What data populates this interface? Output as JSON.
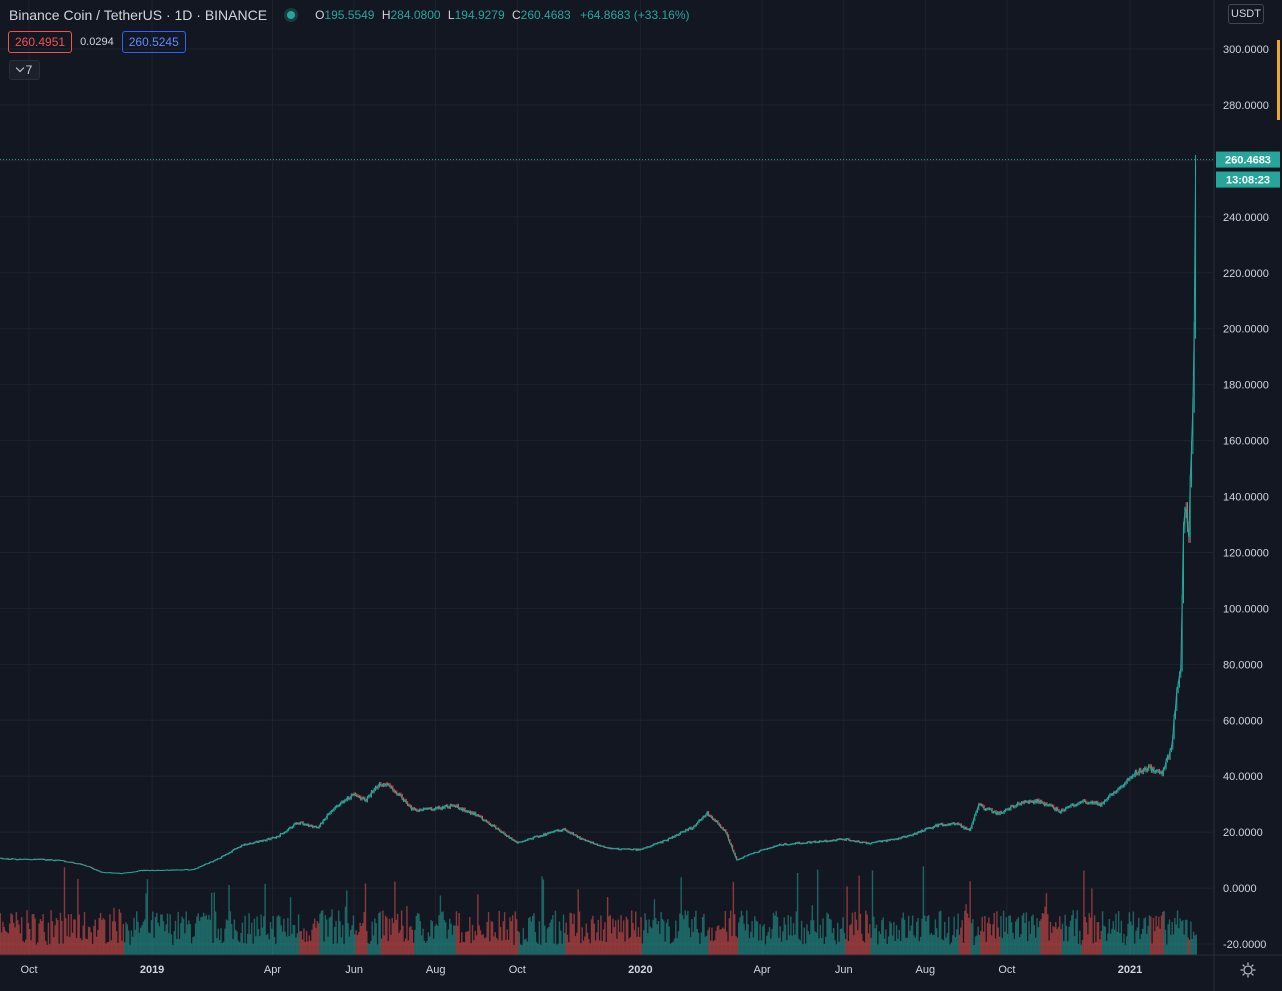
{
  "header": {
    "symbol": "Binance Coin / TetherUS · 1D · BINANCE",
    "ohlc": {
      "o_label": "O",
      "o": "195.5549",
      "h_label": "H",
      "h": "284.0800",
      "l_label": "L",
      "l": "194.9279",
      "c_label": "C",
      "c": "260.4683",
      "change": "+64.8683 (+33.16%)"
    },
    "bid": "260.4951",
    "spread": "0.0294",
    "ask": "260.5245",
    "indicators_count": "7",
    "currency": "USDT"
  },
  "price_tag": {
    "price": "260.4683",
    "countdown": "13:08:23"
  },
  "icons": {
    "collapse": "chevron-down-icon",
    "settings": "gear-icon",
    "live": "status-dot-icon"
  },
  "colors": {
    "background": "#131722",
    "up": "#26a69a",
    "down": "#ef5350",
    "grid": "#1e222d",
    "axis_text": "#d1d4dc",
    "bid": "#ef5350",
    "ask": "#2962ff",
    "highlight": "#f5a623"
  },
  "chart_data": {
    "type": "line",
    "title": "",
    "xlabel": "",
    "ylabel": "",
    "ylim": [
      -20,
      302
    ],
    "y_ticks": [
      -20,
      0,
      20,
      40,
      60,
      80,
      100,
      120,
      140,
      160,
      180,
      200,
      220,
      240,
      260,
      280,
      300
    ],
    "y_tick_labels": [
      "-20.0000",
      "0.0000",
      "20.0000",
      "40.0000",
      "60.0000",
      "80.0000",
      "100.0000",
      "120.0000",
      "140.0000",
      "160.0000",
      "180.0000",
      "200.0000",
      "220.0000",
      "240.0000",
      "260.0000",
      "280.0000",
      "300.0000"
    ],
    "x_ticks": [
      {
        "label": "Oct",
        "date": "2018-10-01"
      },
      {
        "label": "2019",
        "date": "2019-01-01"
      },
      {
        "label": "Apr",
        "date": "2019-04-01"
      },
      {
        "label": "Jun",
        "date": "2019-06-01"
      },
      {
        "label": "Aug",
        "date": "2019-08-01"
      },
      {
        "label": "Oct",
        "date": "2019-10-01"
      },
      {
        "label": "2020",
        "date": "2020-01-01"
      },
      {
        "label": "Apr",
        "date": "2020-04-01"
      },
      {
        "label": "Jun",
        "date": "2020-06-01"
      },
      {
        "label": "Aug",
        "date": "2020-08-01"
      },
      {
        "label": "Oct",
        "date": "2020-10-01"
      },
      {
        "label": "2021",
        "date": "2021-01-01"
      }
    ],
    "x_range": [
      "2018-08-16",
      "2021-02-20"
    ],
    "grid": true,
    "last_price": 260.4683,
    "series": [
      {
        "values": [
          {
            "date": "2018-08-16",
            "close": 10.5
          },
          {
            "date": "2018-09-01",
            "close": 10.8
          },
          {
            "date": "2018-09-20",
            "close": 10.3
          },
          {
            "date": "2018-10-10",
            "close": 10.2
          },
          {
            "date": "2018-10-25",
            "close": 9.8
          },
          {
            "date": "2018-11-10",
            "close": 8.5
          },
          {
            "date": "2018-11-25",
            "close": 5.6
          },
          {
            "date": "2018-12-10",
            "close": 5.2
          },
          {
            "date": "2018-12-25",
            "close": 6.3
          },
          {
            "date": "2019-01-15",
            "close": 6.4
          },
          {
            "date": "2019-02-01",
            "close": 6.6
          },
          {
            "date": "2019-02-20",
            "close": 10.5
          },
          {
            "date": "2019-03-10",
            "close": 15.5
          },
          {
            "date": "2019-03-25",
            "close": 16.8
          },
          {
            "date": "2019-04-05",
            "close": 18.5
          },
          {
            "date": "2019-04-20",
            "close": 23.5
          },
          {
            "date": "2019-05-05",
            "close": 21.5
          },
          {
            "date": "2019-05-15",
            "close": 28.0
          },
          {
            "date": "2019-06-01",
            "close": 33.5
          },
          {
            "date": "2019-06-10",
            "close": 31.5
          },
          {
            "date": "2019-06-20",
            "close": 37.5
          },
          {
            "date": "2019-06-26",
            "close": 37.0
          },
          {
            "date": "2019-07-05",
            "close": 33.0
          },
          {
            "date": "2019-07-15",
            "close": 28.0
          },
          {
            "date": "2019-08-01",
            "close": 28.5
          },
          {
            "date": "2019-08-15",
            "close": 29.5
          },
          {
            "date": "2019-09-01",
            "close": 26.0
          },
          {
            "date": "2019-09-15",
            "close": 21.5
          },
          {
            "date": "2019-10-01",
            "close": 16.0
          },
          {
            "date": "2019-10-20",
            "close": 19.0
          },
          {
            "date": "2019-11-05",
            "close": 21.0
          },
          {
            "date": "2019-11-20",
            "close": 17.0
          },
          {
            "date": "2019-12-10",
            "close": 14.0
          },
          {
            "date": "2020-01-01",
            "close": 13.7
          },
          {
            "date": "2020-01-20",
            "close": 17.0
          },
          {
            "date": "2020-02-10",
            "close": 22.0
          },
          {
            "date": "2020-02-20",
            "close": 27.0
          },
          {
            "date": "2020-03-05",
            "close": 20.0
          },
          {
            "date": "2020-03-13",
            "close": 10.0
          },
          {
            "date": "2020-03-25",
            "close": 12.5
          },
          {
            "date": "2020-04-15",
            "close": 15.5
          },
          {
            "date": "2020-05-10",
            "close": 16.5
          },
          {
            "date": "2020-06-01",
            "close": 17.5
          },
          {
            "date": "2020-06-20",
            "close": 16.0
          },
          {
            "date": "2020-07-10",
            "close": 17.5
          },
          {
            "date": "2020-07-25",
            "close": 19.5
          },
          {
            "date": "2020-08-10",
            "close": 22.5
          },
          {
            "date": "2020-08-25",
            "close": 23.0
          },
          {
            "date": "2020-09-03",
            "close": 20.5
          },
          {
            "date": "2020-09-10",
            "close": 29.5
          },
          {
            "date": "2020-09-25",
            "close": 26.5
          },
          {
            "date": "2020-10-10",
            "close": 30.5
          },
          {
            "date": "2020-10-25",
            "close": 31.0
          },
          {
            "date": "2020-11-10",
            "close": 27.5
          },
          {
            "date": "2020-11-25",
            "close": 31.0
          },
          {
            "date": "2020-12-10",
            "close": 30.0
          },
          {
            "date": "2020-12-25",
            "close": 36.0
          },
          {
            "date": "2021-01-05",
            "close": 41.0
          },
          {
            "date": "2021-01-15",
            "close": 43.0
          },
          {
            "date": "2021-01-25",
            "close": 41.0
          },
          {
            "date": "2021-02-01",
            "close": 50.0
          },
          {
            "date": "2021-02-05",
            "close": 70.0
          },
          {
            "date": "2021-02-08",
            "close": 80.0
          },
          {
            "date": "2021-02-10",
            "close": 130.0
          },
          {
            "date": "2021-02-12",
            "close": 135.0
          },
          {
            "date": "2021-02-14",
            "close": 127.0
          },
          {
            "date": "2021-02-16",
            "close": 160.0
          },
          {
            "date": "2021-02-17",
            "close": 175.0
          },
          {
            "date": "2021-02-18",
            "close": 195.5
          },
          {
            "date": "2021-02-19",
            "close": 260.4683
          }
        ]
      }
    ]
  }
}
